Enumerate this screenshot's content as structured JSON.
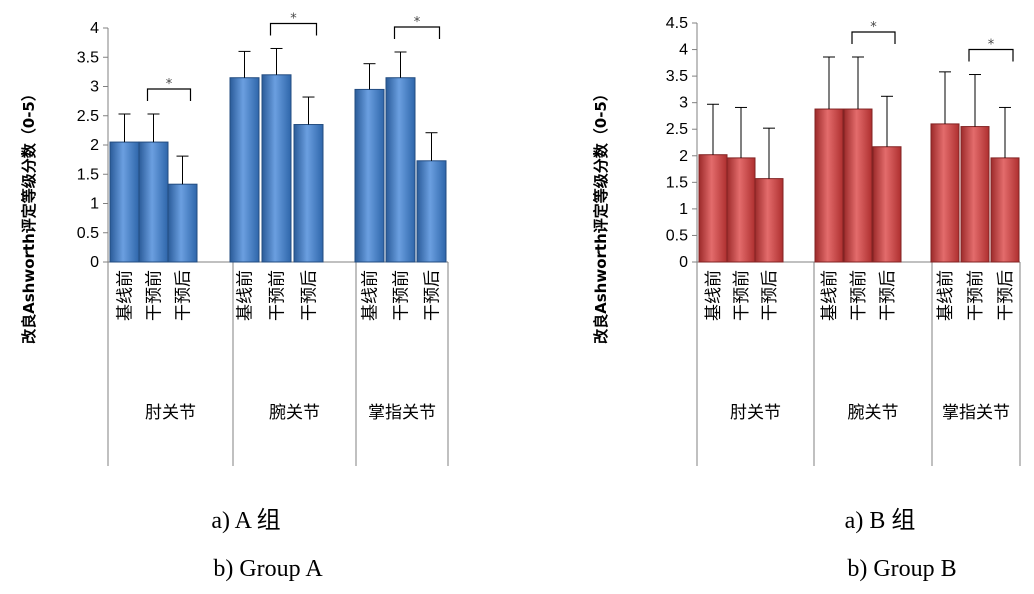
{
  "chart_data": [
    {
      "type": "bar",
      "id": "group-a",
      "ylabel": "改良Ashworth评定等级分数（0-5）",
      "ylim": [
        0,
        4
      ],
      "yticks": [
        "0",
        "0.5",
        "1",
        "1.5",
        "2",
        "2.5",
        "3",
        "3.5",
        "4"
      ],
      "groups": [
        "肘关节",
        "腕关节",
        "掌指关节"
      ],
      "series": [
        "基线前",
        "干预前",
        "干预后"
      ],
      "values": [
        [
          2.05,
          2.05,
          1.33
        ],
        [
          3.15,
          3.2,
          2.35
        ],
        [
          2.95,
          3.15,
          1.73
        ]
      ],
      "errors": [
        [
          0.48,
          0.48,
          0.48
        ],
        [
          0.45,
          0.45,
          0.47
        ],
        [
          0.44,
          0.44,
          0.48
        ]
      ],
      "significance": [
        {
          "group": 0,
          "from": 1,
          "to": 2,
          "label": "*"
        },
        {
          "group": 1,
          "from": 1,
          "to": 2,
          "label": "*"
        },
        {
          "group": 2,
          "from": 1,
          "to": 2,
          "label": "*"
        }
      ],
      "bar_color": "#3a7fd5",
      "caption_cn": "a) A 组",
      "caption_en": "b) Group A"
    },
    {
      "type": "bar",
      "id": "group-b",
      "ylabel": "改良Ashworth评定等级分数（0-5）",
      "ylim": [
        0,
        4.5
      ],
      "yticks": [
        "0",
        "0.5",
        "1",
        "1.5",
        "2",
        "2.5",
        "3",
        "3.5",
        "4",
        "4.5"
      ],
      "groups": [
        "肘关节",
        "腕关节",
        "掌指关节"
      ],
      "series": [
        "基线前",
        "干预前",
        "干预后"
      ],
      "values": [
        [
          2.02,
          1.96,
          1.57
        ],
        [
          2.88,
          2.88,
          2.17
        ],
        [
          2.6,
          2.55,
          1.96
        ]
      ],
      "errors": [
        [
          0.95,
          0.95,
          0.95
        ],
        [
          0.98,
          0.98,
          0.95
        ],
        [
          0.98,
          0.98,
          0.95
        ]
      ],
      "significance": [
        {
          "group": 1,
          "from": 1,
          "to": 2,
          "label": "*"
        },
        {
          "group": 2,
          "from": 1,
          "to": 2,
          "label": "*"
        }
      ],
      "bar_color": "#d93b3b",
      "caption_cn": "a) B 组",
      "caption_en": "b) Group B"
    }
  ]
}
